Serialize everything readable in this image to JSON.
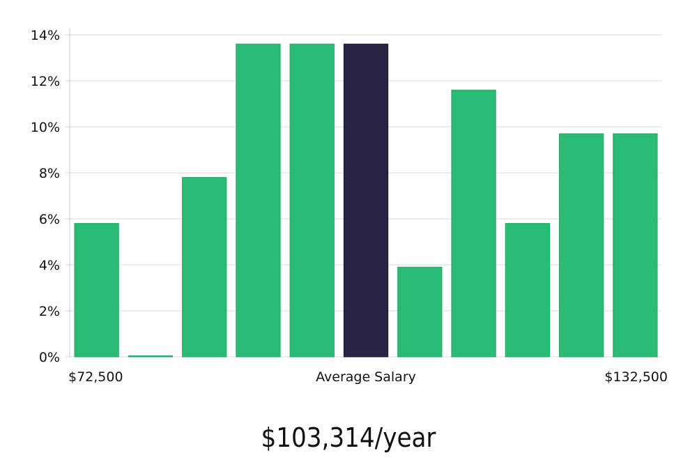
{
  "chart_data": {
    "type": "bar",
    "title": "",
    "ylabel": "",
    "xlabel": "Average Salary",
    "ylim": [
      0,
      14
    ],
    "yticks": [
      0,
      2,
      4,
      6,
      8,
      10,
      12,
      14
    ],
    "ytick_suffix": "%",
    "x_start_label": "$72,500",
    "x_end_label": "$132,500",
    "values": [
      5.8,
      0.0,
      7.8,
      13.6,
      13.6,
      13.6,
      3.9,
      11.6,
      5.8,
      9.7,
      9.7
    ],
    "highlight_index": 5,
    "colors": {
      "bar": "#2abb75",
      "highlight": "#272443",
      "grid": "#d9d9d9"
    },
    "grid": true
  },
  "summary": {
    "salary_text": "$103,314/year"
  }
}
